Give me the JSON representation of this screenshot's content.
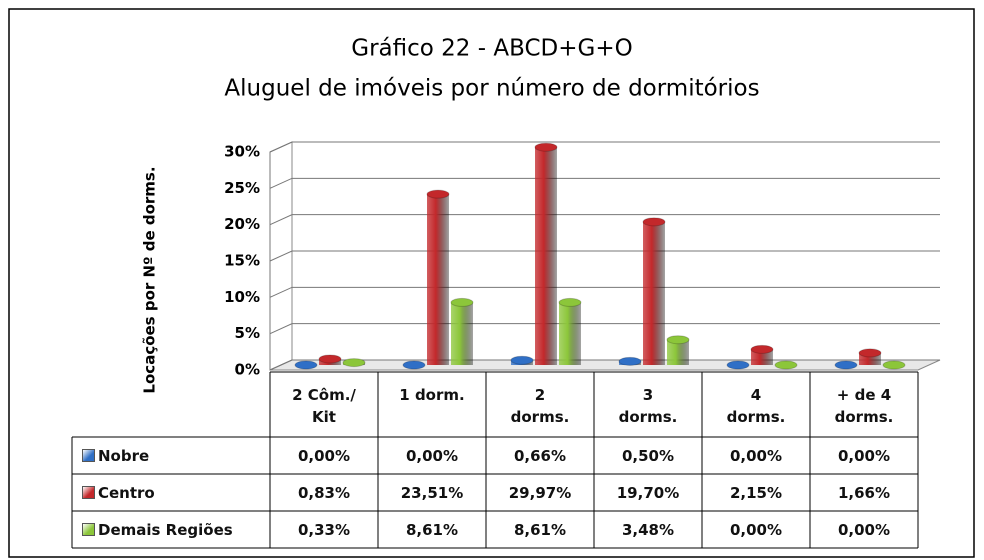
{
  "chart_data": {
    "type": "bar3d",
    "title": "Gráfico 22 - ABCD+G+O",
    "subtitle": "Aluguel de imóveis por número de dormitórios",
    "y_label": "Locações por Nº de dorms.",
    "categories": [
      "2 Côm./\nKit",
      "1 dorm.",
      "2\ndorms.",
      "3\ndorms.",
      "4\ndorms.",
      "+ de 4\ndorms."
    ],
    "series": [
      {
        "name": "Nobre",
        "color": "#2f6fc6",
        "values": [
          0,
          0,
          0.66,
          0.5,
          0,
          0
        ],
        "value_labels": [
          "0,00%",
          "0,00%",
          "0,66%",
          "0,50%",
          "0,00%",
          "0,00%"
        ]
      },
      {
        "name": "Centro",
        "color": "#c3282b",
        "values": [
          0.83,
          23.51,
          29.97,
          19.7,
          2.15,
          1.66
        ],
        "value_labels": [
          "0,83%",
          "23,51%",
          "29,97%",
          "19,70%",
          "2,15%",
          "1,66%"
        ]
      },
      {
        "name": "Demais Regiões",
        "color": "#8cc63a",
        "values": [
          0.33,
          8.61,
          8.61,
          3.48,
          0,
          0
        ],
        "value_labels": [
          "0,33%",
          "8,61%",
          "8,61%",
          "3,48%",
          "0,00%",
          "0,00%"
        ]
      }
    ],
    "ylim": [
      0,
      30
    ],
    "yticks": [
      {
        "value": 0,
        "label": "0%"
      },
      {
        "value": 5,
        "label": "5%"
      },
      {
        "value": 10,
        "label": "10%"
      },
      {
        "value": 15,
        "label": "15%"
      },
      {
        "value": 20,
        "label": "20%"
      },
      {
        "value": 25,
        "label": "25%"
      },
      {
        "value": 30,
        "label": "30%"
      }
    ],
    "grid": true
  }
}
